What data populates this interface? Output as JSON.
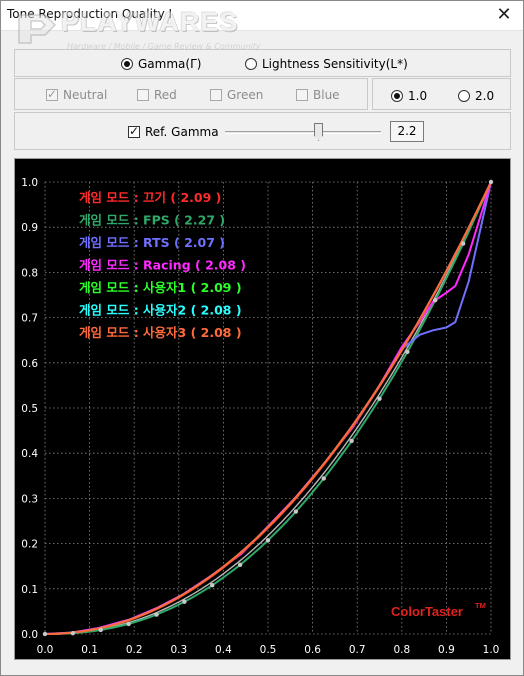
{
  "window": {
    "title": "Tone Reproduction Quality I",
    "close_glyph": "✕"
  },
  "watermark": {
    "brand": "PLAYWARES",
    "tagline": "Hardware / Mobile / Game Review & Community"
  },
  "mode": {
    "gamma_label": "Gamma(Γ)",
    "lightness_label": "Lightness Sensitivity(L*)",
    "selected": "gamma"
  },
  "channels": {
    "neutral": {
      "label": "Neutral",
      "checked": true,
      "enabled": false
    },
    "red": {
      "label": "Red",
      "checked": false,
      "enabled": false
    },
    "green": {
      "label": "Green",
      "checked": false,
      "enabled": false
    },
    "blue": {
      "label": "Blue",
      "checked": false,
      "enabled": false
    }
  },
  "scale": {
    "opt1_label": "1.0",
    "opt2_label": "2.0",
    "selected": "1.0"
  },
  "ref_gamma": {
    "label": "Ref. Gamma",
    "checked": true,
    "value": "2.2",
    "slider_level": 0.6
  },
  "chart_data": {
    "type": "line",
    "xlim": [
      0,
      1
    ],
    "ylim": [
      0,
      1
    ],
    "grid": true,
    "x_ticks": [
      "0.0",
      "0.1",
      "0.2",
      "0.3",
      "0.4",
      "0.5",
      "0.6",
      "0.7",
      "0.8",
      "0.9",
      "1.0"
    ],
    "y_ticks": [
      "0.0",
      "0.1",
      "0.2",
      "0.3",
      "0.4",
      "0.5",
      "0.6",
      "0.7",
      "0.8",
      "0.9",
      "1.0"
    ],
    "legend_placement": "top-left",
    "brand_label": "ColorTaster",
    "brand_superscript": "TM",
    "brand_color": "#e0221e",
    "series": [
      {
        "name": "게임 모드 : 끄기 ( 2.09 )",
        "color": "#ff2a2a",
        "gamma": 2.09
      },
      {
        "name": "게임 모드 : FPS ( 2.27 )",
        "color": "#2fa86a",
        "gamma": 2.27
      },
      {
        "name": "게임 모드 : RTS ( 2.07 )",
        "color": "#7070ff",
        "gamma": 2.07,
        "x": [
          0,
          0.06,
          0.12,
          0.19,
          0.25,
          0.31,
          0.37,
          0.44,
          0.5,
          0.56,
          0.62,
          0.69,
          0.75,
          0.8,
          0.84,
          0.87,
          0.9,
          0.92,
          0.95,
          1.0
        ],
        "y": [
          0,
          0.003,
          0.013,
          0.032,
          0.057,
          0.088,
          0.127,
          0.177,
          0.238,
          0.3,
          0.37,
          0.457,
          0.548,
          0.63,
          0.662,
          0.672,
          0.678,
          0.69,
          0.78,
          1.0
        ]
      },
      {
        "name": "게임 모드 : Racing ( 2.08 )",
        "color": "#ff2aff",
        "gamma": 2.08,
        "x": [
          0,
          0.06,
          0.12,
          0.19,
          0.25,
          0.31,
          0.37,
          0.44,
          0.5,
          0.56,
          0.62,
          0.69,
          0.75,
          0.8,
          0.84,
          0.87,
          0.9,
          0.92,
          0.95,
          1.0
        ],
        "y": [
          0,
          0.003,
          0.013,
          0.032,
          0.057,
          0.088,
          0.127,
          0.177,
          0.238,
          0.3,
          0.37,
          0.457,
          0.55,
          0.635,
          0.69,
          0.735,
          0.755,
          0.77,
          0.84,
          1.0
        ]
      },
      {
        "name": "게임 모드 : 사용자1 ( 2.09 )",
        "color": "#2aff2a",
        "gamma": 2.09
      },
      {
        "name": "게임 모드 : 사용자2 ( 2.08 )",
        "color": "#2affff",
        "gamma": 2.08
      },
      {
        "name": "게임 모드 : 사용자3 ( 2.08 )",
        "color": "#ff6a3a",
        "gamma": 2.08
      }
    ],
    "reference": {
      "gamma": 2.2,
      "color": "#b8b8b8"
    }
  }
}
